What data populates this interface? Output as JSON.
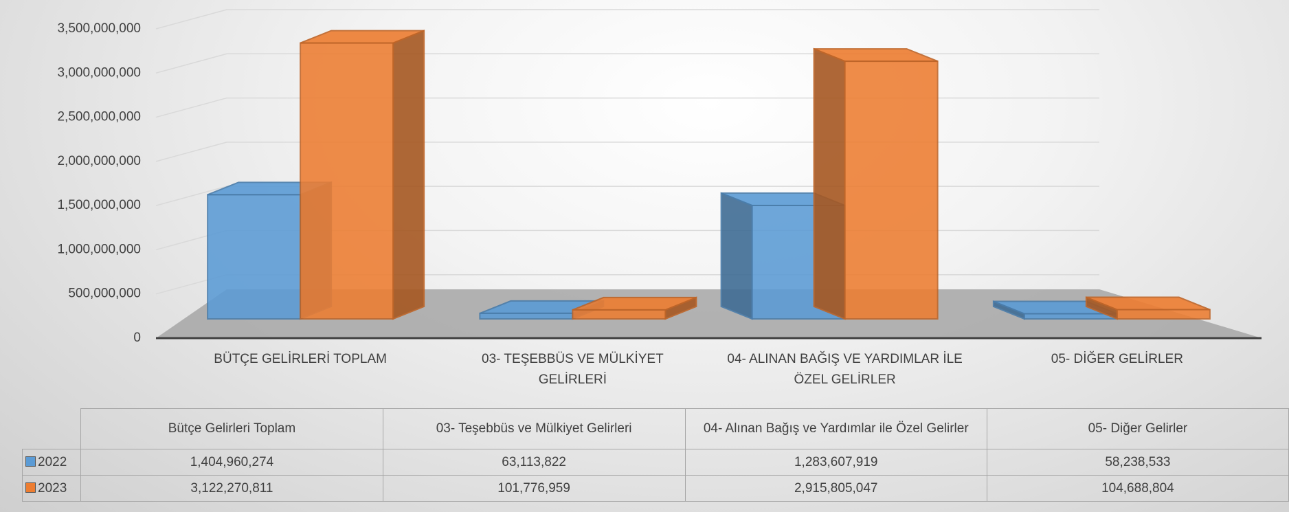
{
  "chart_data": {
    "type": "bar3d",
    "categories": [
      "BÜTÇE GELİRLERİ TOPLAM",
      "03- TEŞEBBÜS VE MÜLKİYET GELİRLERİ",
      "04- ALINAN BAĞIŞ VE YARDIMLAR İLE ÖZEL GELİRLER",
      "05- DİĞER GELİRLER"
    ],
    "table_categories": [
      "Bütçe Gelirleri Toplam",
      "03- Teşebbüs ve Mülkiyet Gelirleri",
      "04- Alınan Bağış ve Yardımlar ile Özel Gelirler",
      "05- Diğer Gelirler"
    ],
    "series": [
      {
        "name": "2022",
        "color": "#5b9bd5",
        "values": [
          1404960274,
          63113822,
          1283607919,
          58238533
        ],
        "value_labels": [
          "1,404,960,274",
          "63,113,822",
          "1,283,607,919",
          "58,238,533"
        ]
      },
      {
        "name": "2023",
        "color": "#ed7d31",
        "values": [
          3122270811,
          101776959,
          2915805047,
          104688804
        ],
        "value_labels": [
          "3,122,270,811",
          "101,776,959",
          "2,915,805,047",
          "104,688,804"
        ]
      }
    ],
    "ylim": [
      0,
      3500000000
    ],
    "yticks": [
      0,
      {
        "value": 500000000,
        "label": "500,000,000"
      },
      {
        "value": 1000000000,
        "label": "1,000,000,000"
      },
      {
        "value": 1500000000,
        "label": "1,500,000,000"
      },
      {
        "value": 2000000000,
        "label": "2,000,000,000"
      },
      {
        "value": 2500000000,
        "label": "2,500,000,000"
      },
      {
        "value": 3000000000,
        "label": "3,000,000,000"
      },
      {
        "value": 3500000000,
        "label": "3,500,000,000"
      }
    ],
    "grid": true,
    "legend": "table"
  }
}
